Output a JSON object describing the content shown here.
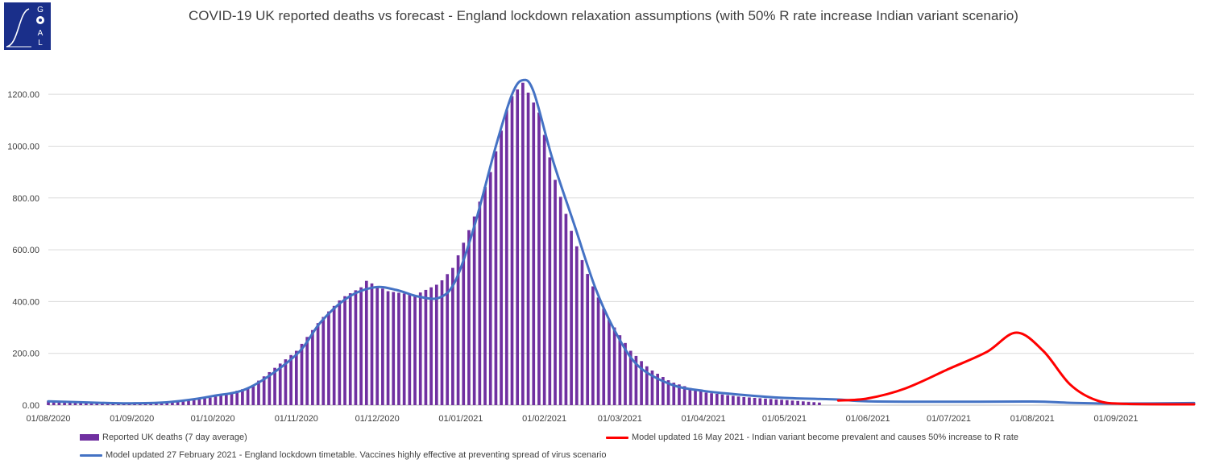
{
  "logo": {
    "letters": [
      "G",
      "O",
      "A",
      "L"
    ],
    "color": "#1a2f8a"
  },
  "chart_data": {
    "type": "bar+line",
    "title": "COVID-19 UK reported deaths vs forecast - England lockdown relaxation assumptions (with 50% R rate increase Indian variant scenario)",
    "ylim": [
      0,
      1300
    ],
    "y_ticks": [
      "0.00",
      "200.00",
      "400.00",
      "600.00",
      "800.00",
      "1000.00",
      "1200.00"
    ],
    "y_tick_values": [
      0,
      200,
      400,
      600,
      800,
      1000,
      1200
    ],
    "x_range": [
      "2020-08-01",
      "2021-09-30"
    ],
    "x_ticks": [
      {
        "date": "2020-08-01",
        "label": "01/08/2020"
      },
      {
        "date": "2020-09-01",
        "label": "01/09/2020"
      },
      {
        "date": "2020-10-01",
        "label": "01/10/2020"
      },
      {
        "date": "2020-11-01",
        "label": "01/11/2020"
      },
      {
        "date": "2020-12-01",
        "label": "01/12/2020"
      },
      {
        "date": "2021-01-01",
        "label": "01/01/2021"
      },
      {
        "date": "2021-02-01",
        "label": "01/02/2021"
      },
      {
        "date": "2021-03-01",
        "label": "01/03/2021"
      },
      {
        "date": "2021-04-01",
        "label": "01/04/2021"
      },
      {
        "date": "2021-05-01",
        "label": "01/05/2021"
      },
      {
        "date": "2021-06-01",
        "label": "01/06/2021"
      },
      {
        "date": "2021-07-01",
        "label": "01/07/2021"
      },
      {
        "date": "2021-08-01",
        "label": "01/08/2021"
      },
      {
        "date": "2021-09-01",
        "label": "01/09/2021"
      }
    ],
    "grid": true,
    "legend_position": "bottom",
    "series": [
      {
        "name": "Reported UK deaths (7 day average)",
        "kind": "bar",
        "color": "#7030a0",
        "bar_every_days": 2,
        "points": [
          [
            "2020-08-01",
            17
          ],
          [
            "2020-08-15",
            12
          ],
          [
            "2020-09-01",
            8
          ],
          [
            "2020-09-15",
            14
          ],
          [
            "2020-10-01",
            30
          ],
          [
            "2020-10-15",
            70
          ],
          [
            "2020-11-01",
            210
          ],
          [
            "2020-11-10",
            330
          ],
          [
            "2020-11-18",
            415
          ],
          [
            "2020-11-25",
            455
          ],
          [
            "2020-11-27",
            480
          ],
          [
            "2020-12-05",
            440
          ],
          [
            "2020-12-15",
            425
          ],
          [
            "2020-12-24",
            470
          ],
          [
            "2020-12-29",
            530
          ],
          [
            "2021-01-05",
            700
          ],
          [
            "2021-01-12",
            900
          ],
          [
            "2021-01-19",
            1180
          ],
          [
            "2021-01-24",
            1245
          ],
          [
            "2021-01-30",
            1130
          ],
          [
            "2021-02-05",
            870
          ],
          [
            "2021-02-12",
            640
          ],
          [
            "2021-02-18",
            480
          ],
          [
            "2021-02-25",
            330
          ],
          [
            "2021-03-05",
            210
          ],
          [
            "2021-03-12",
            140
          ],
          [
            "2021-03-20",
            90
          ],
          [
            "2021-04-01",
            50
          ],
          [
            "2021-04-15",
            32
          ],
          [
            "2021-05-01",
            20
          ],
          [
            "2021-05-14",
            10
          ]
        ]
      },
      {
        "name": "Model updated 16 May 2021 - Indian variant become prevalent and causes 50% increase to R rate",
        "kind": "line",
        "color": "#ff0000",
        "points": [
          [
            "2021-05-21",
            18
          ],
          [
            "2021-06-01",
            26
          ],
          [
            "2021-06-15",
            65
          ],
          [
            "2021-07-01",
            140
          ],
          [
            "2021-07-15",
            205
          ],
          [
            "2021-07-26",
            280
          ],
          [
            "2021-08-05",
            210
          ],
          [
            "2021-08-15",
            80
          ],
          [
            "2021-08-25",
            18
          ],
          [
            "2021-09-05",
            5
          ],
          [
            "2021-09-30",
            3
          ]
        ]
      },
      {
        "name": "Model updated 27 February 2021 - England lockdown timetable. Vaccines highly effective at preventing spread of virus scenario",
        "kind": "line",
        "color": "#4472c4",
        "points": [
          [
            "2020-08-01",
            15
          ],
          [
            "2020-08-20",
            9
          ],
          [
            "2020-09-01",
            7
          ],
          [
            "2020-09-15",
            12
          ],
          [
            "2020-10-01",
            35
          ],
          [
            "2020-10-15",
            70
          ],
          [
            "2020-11-01",
            195
          ],
          [
            "2020-11-10",
            320
          ],
          [
            "2020-11-20",
            415
          ],
          [
            "2020-11-30",
            455
          ],
          [
            "2020-12-08",
            445
          ],
          [
            "2020-12-16",
            420
          ],
          [
            "2020-12-24",
            415
          ],
          [
            "2020-12-30",
            480
          ],
          [
            "2021-01-06",
            690
          ],
          [
            "2021-01-14",
            1000
          ],
          [
            "2021-01-20",
            1200
          ],
          [
            "2021-01-24",
            1255
          ],
          [
            "2021-01-28",
            1210
          ],
          [
            "2021-02-04",
            950
          ],
          [
            "2021-02-12",
            700
          ],
          [
            "2021-02-20",
            450
          ],
          [
            "2021-02-28",
            270
          ],
          [
            "2021-03-08",
            150
          ],
          [
            "2021-03-20",
            80
          ],
          [
            "2021-04-01",
            55
          ],
          [
            "2021-04-15",
            40
          ],
          [
            "2021-05-01",
            28
          ],
          [
            "2021-05-20",
            22
          ],
          [
            "2021-06-01",
            15
          ],
          [
            "2021-07-01",
            13
          ],
          [
            "2021-08-01",
            14
          ],
          [
            "2021-08-15",
            9
          ],
          [
            "2021-09-01",
            6
          ],
          [
            "2021-09-30",
            8
          ]
        ]
      }
    ]
  }
}
